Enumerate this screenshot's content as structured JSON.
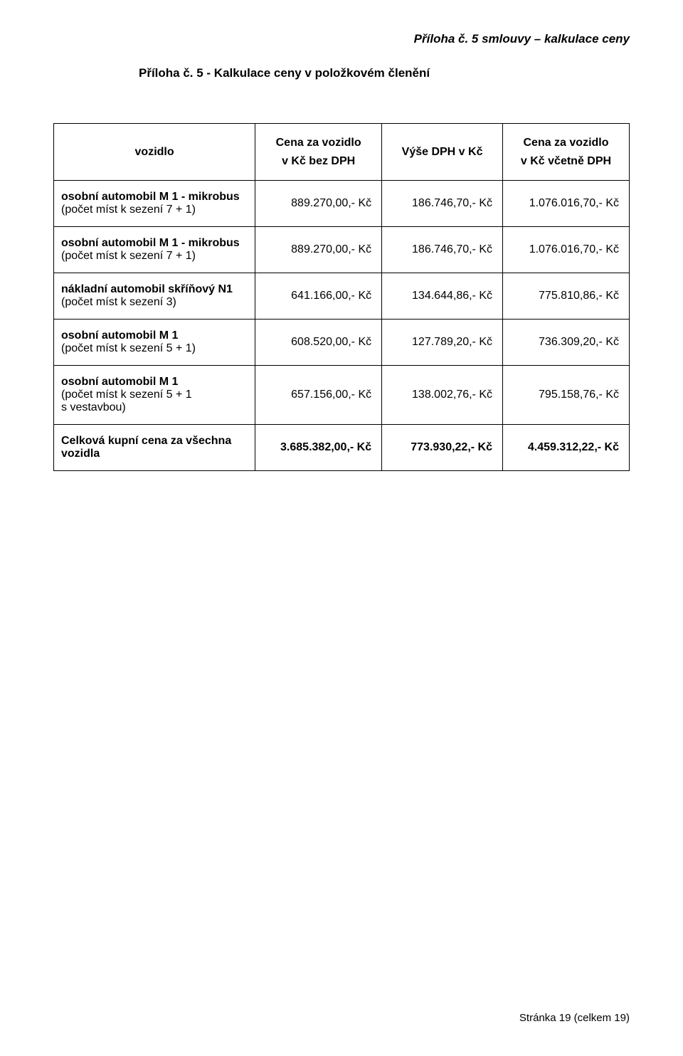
{
  "font": {
    "family": "Arial",
    "body_size_pt": 12
  },
  "colors": {
    "text": "#000000",
    "border": "#000000",
    "background": "#ffffff"
  },
  "header_right": "Příloha č. 5 smlouvy – kalkulace ceny",
  "subtitle": "Příloha č. 5 - Kalkulace ceny v položkovém členění",
  "table": {
    "columns": [
      {
        "line1": "vozidlo",
        "line2": ""
      },
      {
        "line1": "Cena za vozidlo",
        "line2": "v Kč bez DPH"
      },
      {
        "line1": "Výše DPH v Kč",
        "line2": ""
      },
      {
        "line1": "Cena za vozidlo",
        "line2": "v Kč včetně DPH"
      }
    ],
    "rows": [
      {
        "label_bold": "osobní automobil M 1 - mikrobus",
        "label_sub": "(počet míst k sezení 7 + 1)",
        "c1": "889.270,00,- Kč",
        "c2": "186.746,70,- Kč",
        "c3": "1.076.016,70,- Kč"
      },
      {
        "label_bold": "osobní automobil M 1 - mikrobus",
        "label_sub": "(počet míst k sezení 7 + 1)",
        "c1": "889.270,00,- Kč",
        "c2": "186.746,70,- Kč",
        "c3": "1.076.016,70,- Kč"
      },
      {
        "label_bold": "nákladní automobil skříňový N1",
        "label_sub": "(počet míst k sezení 3)",
        "c1": "641.166,00,- Kč",
        "c2": "134.644,86,- Kč",
        "c3": "775.810,86,- Kč"
      },
      {
        "label_bold": "osobní automobil M 1",
        "label_sub": "(počet míst k sezení 5 + 1)",
        "c1": "608.520,00,- Kč",
        "c2": "127.789,20,- Kč",
        "c3": "736.309,20,- Kč"
      },
      {
        "label_bold": "osobní automobil M 1",
        "label_sub": "(počet míst k sezení 5 + 1\ns vestavbou)",
        "c1": "657.156,00,- Kč",
        "c2": "138.002,76,- Kč",
        "c3": "795.158,76,- Kč"
      }
    ],
    "total": {
      "label_bold": "Celková kupní cena za všechna\nvozidla",
      "c1": "3.685.382,00,- Kč",
      "c2": "773.930,22,- Kč",
      "c3": "4.459.312,22,- Kč"
    }
  },
  "footer": "Stránka 19 (celkem 19)"
}
